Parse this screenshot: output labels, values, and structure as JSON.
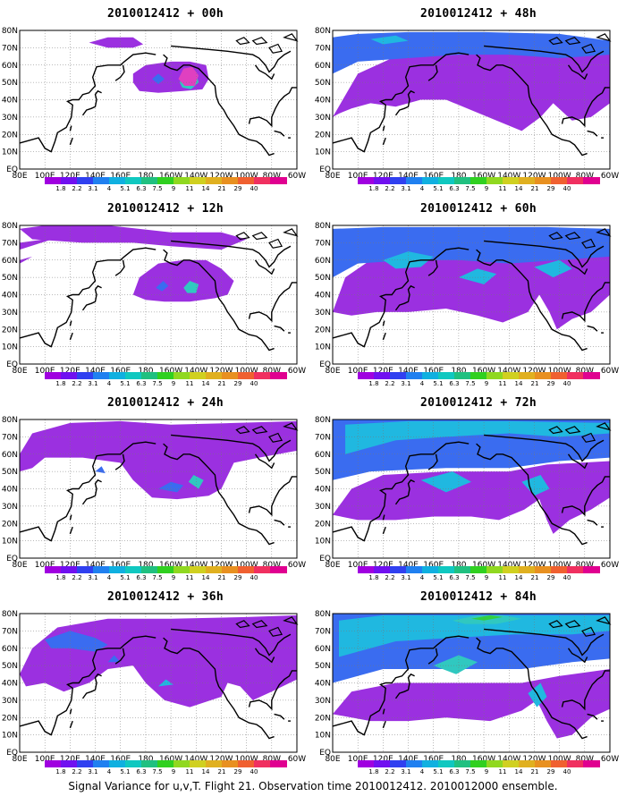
{
  "panels": [
    {
      "title": "2010012412 + 00h",
      "level": 0
    },
    {
      "title": "2010012412 + 48h",
      "level": 4
    },
    {
      "title": "2010012412 + 12h",
      "level": 1
    },
    {
      "title": "2010012412 + 60h",
      "level": 5
    },
    {
      "title": "2010012412 + 24h",
      "level": 2
    },
    {
      "title": "2010012412 + 72h",
      "level": 6
    },
    {
      "title": "2010012412 + 36h",
      "level": 3
    },
    {
      "title": "2010012412 + 84h",
      "level": 7
    }
  ],
  "lon_labels": [
    "80E",
    "100E",
    "120E",
    "140E",
    "160E",
    "180",
    "160W",
    "140W",
    "120W",
    "100W",
    "80W",
    "60W"
  ],
  "lat_labels": [
    "EQ",
    "10N",
    "20N",
    "30N",
    "40N",
    "50N",
    "60N",
    "70N",
    "80N"
  ],
  "colorbar": {
    "labels": [
      "1.8",
      "2.2",
      "3.1",
      "4",
      "5.1",
      "6.3",
      "7.5",
      "9",
      "11",
      "14",
      "21",
      "29",
      "40"
    ],
    "colors": [
      "#a000e0",
      "#7010f0",
      "#3040f0",
      "#2080f0",
      "#10b0e0",
      "#10c8c0",
      "#20c080",
      "#30d020",
      "#90d820",
      "#d0d020",
      "#e0b020",
      "#e89020",
      "#f06030",
      "#f03060",
      "#e00090"
    ]
  },
  "caption": "Signal Variance for u,v,T. Flight 21. Observation time 2010012412. 2010012000 ensemble."
}
